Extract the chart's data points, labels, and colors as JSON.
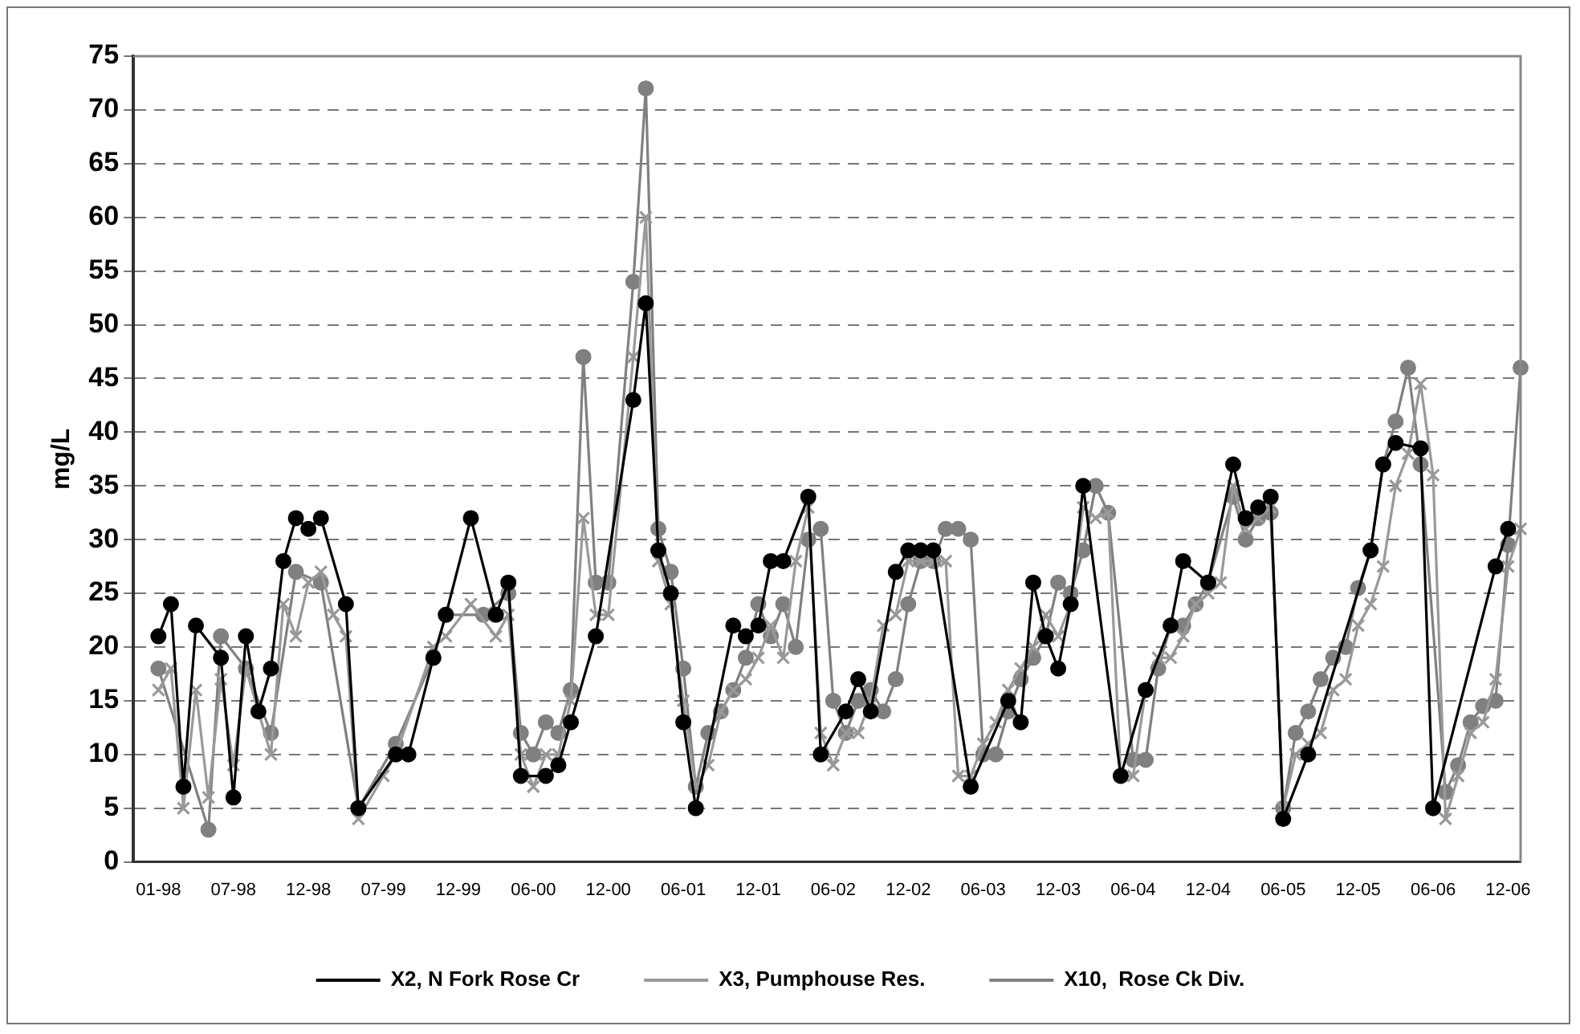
{
  "chart_data": {
    "type": "line",
    "ylabel": "mg/L",
    "ylim": [
      0,
      75
    ],
    "yticks": [
      0,
      5,
      10,
      15,
      20,
      25,
      30,
      35,
      40,
      45,
      50,
      55,
      60,
      65,
      70,
      75
    ],
    "grid": "y",
    "legend": "bottom",
    "line_style": "solid",
    "categories": [
      null,
      null,
      "01-98",
      null,
      null,
      null,
      null,
      null,
      "07-98",
      null,
      null,
      null,
      null,
      null,
      "12-98",
      null,
      null,
      null,
      null,
      null,
      "07-99",
      null,
      null,
      null,
      null,
      null,
      "12-99",
      null,
      null,
      null,
      null,
      null,
      "06-00",
      null,
      null,
      null,
      null,
      null,
      "12-00",
      null,
      null,
      null,
      null,
      null,
      "06-01",
      null,
      null,
      null,
      null,
      null,
      "12-01",
      null,
      null,
      null,
      null,
      null,
      "06-02",
      null,
      null,
      null,
      null,
      null,
      "12-02",
      null,
      null,
      null,
      null,
      null,
      "06-03",
      null,
      null,
      null,
      null,
      null,
      "12-03",
      null,
      null,
      null,
      null,
      null,
      "06-04",
      null,
      null,
      null,
      null,
      null,
      "12-04",
      null,
      null,
      null,
      null,
      null,
      "06-05",
      null,
      null,
      null,
      null,
      null,
      "12-05",
      null,
      null,
      null,
      null,
      null,
      "06-06",
      null,
      null,
      null,
      null,
      null,
      "12-06",
      null
    ],
    "series": [
      {
        "name": "X2, N Fork Rose Cr",
        "color": "#000000",
        "marker": "circle",
        "values": [
          null,
          null,
          21,
          24,
          7,
          22,
          null,
          19,
          6,
          21,
          14,
          18,
          28,
          32,
          31,
          32,
          null,
          24,
          5,
          null,
          null,
          10,
          10,
          null,
          19,
          23,
          null,
          32,
          null,
          23,
          26,
          8,
          null,
          8,
          9,
          13,
          null,
          21,
          null,
          null,
          43,
          52,
          29,
          25,
          13,
          5,
          null,
          null,
          22,
          21,
          22,
          28,
          28,
          null,
          34,
          10,
          null,
          14,
          17,
          14,
          null,
          27,
          29,
          29,
          29,
          null,
          null,
          7,
          null,
          null,
          15,
          13,
          26,
          21,
          18,
          24,
          35,
          null,
          null,
          8,
          null,
          16,
          null,
          22,
          28,
          null,
          26,
          null,
          37,
          32,
          33,
          34,
          4,
          null,
          10,
          null,
          null,
          null,
          null,
          29,
          37,
          39,
          null,
          38.5,
          5,
          null,
          null,
          null,
          null,
          27.5,
          31,
          null
        ]
      },
      {
        "name": "X3, Pumphouse Res.",
        "color": "#999999",
        "marker": "cross",
        "values": [
          null,
          null,
          16,
          18,
          5,
          16,
          6,
          17,
          9,
          18,
          null,
          10,
          24,
          21,
          26,
          27,
          23,
          21,
          4,
          null,
          8,
          10,
          null,
          null,
          20,
          21,
          null,
          24,
          null,
          21,
          23,
          10,
          7,
          10,
          10,
          15,
          32,
          23,
          23,
          null,
          47,
          60,
          28,
          24,
          15,
          7,
          9,
          14,
          16,
          17,
          19,
          22,
          19,
          28,
          33,
          12,
          9,
          12,
          12,
          15,
          22,
          23,
          28,
          28,
          28,
          28,
          8,
          8,
          11,
          13,
          16,
          18,
          20,
          23,
          21,
          24,
          33,
          32,
          32.5,
          8,
          8,
          16,
          19,
          19,
          21,
          24,
          25,
          26,
          35,
          31,
          32,
          33,
          5,
          10,
          11,
          12,
          16,
          17,
          22,
          24,
          27.5,
          35,
          38,
          44.5,
          36,
          4,
          8,
          12,
          13,
          17,
          27.5,
          31
        ]
      },
      {
        "name": "X10,  Rose Ck Div.",
        "color": "#808080",
        "marker": "circle",
        "values": [
          null,
          null,
          18,
          null,
          null,
          null,
          3,
          21,
          null,
          18,
          null,
          12,
          null,
          27,
          null,
          26,
          null,
          null,
          5,
          null,
          null,
          11,
          null,
          null,
          19,
          23,
          null,
          null,
          23,
          null,
          25,
          12,
          10,
          13,
          12,
          16,
          47,
          26,
          26,
          null,
          54,
          72,
          31,
          27,
          18,
          7,
          12,
          14,
          16,
          19,
          24,
          21,
          24,
          20,
          30,
          31,
          15,
          12,
          15,
          16,
          14,
          17,
          24,
          28,
          28,
          31,
          31,
          30,
          10,
          10,
          14,
          17,
          19,
          21,
          26,
          25,
          29,
          35,
          32.5,
          null,
          9.5,
          9.5,
          18,
          22,
          22,
          24,
          26,
          null,
          34,
          30,
          32,
          32.5,
          5,
          12,
          14,
          17,
          19,
          20,
          25.5,
          29,
          37,
          41,
          46,
          37,
          null,
          6.5,
          9,
          13,
          14.5,
          15,
          29.5,
          46
        ]
      }
    ]
  }
}
